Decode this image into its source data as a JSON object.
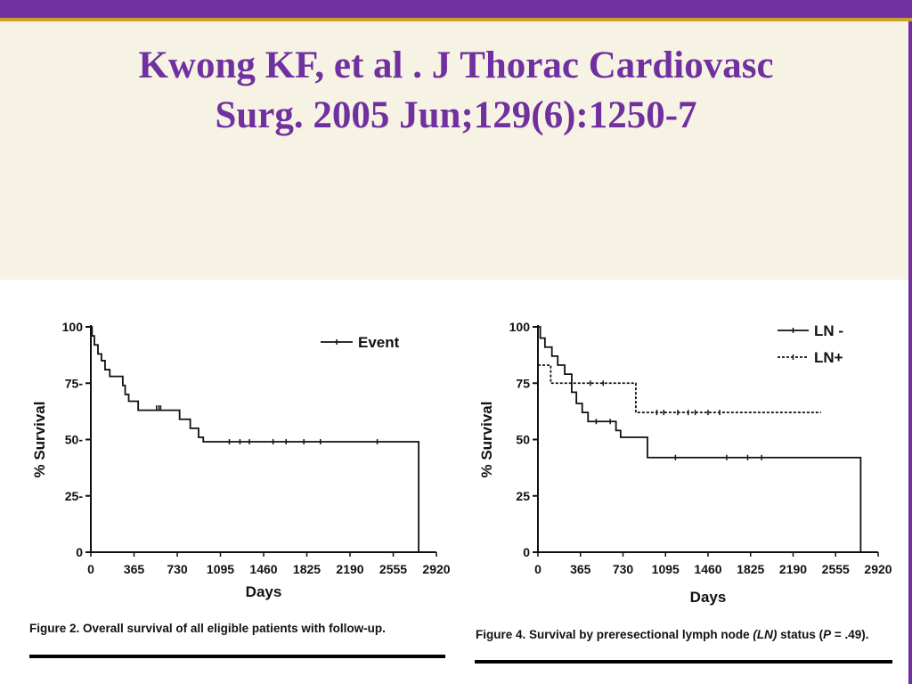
{
  "slide": {
    "title_line1": "Kwong KF, et al . J Thorac Cardiovasc",
    "title_line2": "Surg. 2005 Jun;129(6):1250-7",
    "colors": {
      "accent": "#7030a0",
      "gold": "#c9a227",
      "background": "#f6f3e4"
    }
  },
  "chart_data": [
    {
      "type": "line",
      "step": true,
      "xlabel": "Days",
      "ylabel": "% Survival",
      "x_ticks": [
        "0",
        "365",
        "730",
        "1095",
        "1460",
        "1825",
        "2190",
        "2555",
        "2920"
      ],
      "y_ticks": [
        "0",
        "25-",
        "50-",
        "75-",
        "100"
      ],
      "xlim": [
        0,
        2920
      ],
      "ylim": [
        0,
        100
      ],
      "caption": "Figure 2.  Overall survival of all eligible patients with follow-up.",
      "legend_position": "top-right",
      "series": [
        {
          "name": "Event",
          "style": "solid",
          "points": [
            [
              0,
              100
            ],
            [
              10,
              96
            ],
            [
              30,
              92
            ],
            [
              60,
              88
            ],
            [
              90,
              85
            ],
            [
              120,
              81
            ],
            [
              160,
              78
            ],
            [
              230,
              78
            ],
            [
              270,
              74
            ],
            [
              290,
              70
            ],
            [
              320,
              67
            ],
            [
              380,
              67
            ],
            [
              400,
              63
            ],
            [
              620,
              63
            ],
            [
              650,
              63
            ],
            [
              750,
              59
            ],
            [
              790,
              59
            ],
            [
              820,
              59
            ],
            [
              840,
              55
            ],
            [
              900,
              55
            ],
            [
              910,
              51
            ],
            [
              950,
              49
            ],
            [
              2770,
              49
            ],
            [
              2770,
              0
            ]
          ],
          "censored": [
            [
              555,
              64
            ],
            [
              575,
              64
            ],
            [
              590,
              64
            ],
            [
              1170,
              49
            ],
            [
              1260,
              49
            ],
            [
              1340,
              49
            ],
            [
              1540,
              49
            ],
            [
              1650,
              49
            ],
            [
              1800,
              49
            ],
            [
              1940,
              49
            ],
            [
              2420,
              49
            ]
          ]
        }
      ]
    },
    {
      "type": "line",
      "step": true,
      "xlabel": "Days",
      "ylabel": "% Survival",
      "x_ticks": [
        "0",
        "365",
        "730",
        "1095",
        "1460",
        "1825",
        "2190",
        "2555",
        "2920"
      ],
      "y_ticks": [
        "0",
        "25",
        "50",
        "75",
        "100"
      ],
      "xlim": [
        0,
        2920
      ],
      "ylim": [
        0,
        100
      ],
      "caption_prefix": "Figure 4.  Survival by preresectional lymph node ",
      "caption_italic1": "(LN)",
      "caption_mid": " status (",
      "caption_italic2": "P",
      "caption_suffix": " = .49).",
      "legend_position": "top-right",
      "series": [
        {
          "name": "LN -",
          "style": "solid",
          "points": [
            [
              0,
              100
            ],
            [
              20,
              95
            ],
            [
              60,
              91
            ],
            [
              120,
              87
            ],
            [
              170,
              83
            ],
            [
              230,
              79
            ],
            [
              290,
              71
            ],
            [
              330,
              66
            ],
            [
              380,
              62
            ],
            [
              430,
              58
            ],
            [
              640,
              58
            ],
            [
              670,
              54
            ],
            [
              700,
              54
            ],
            [
              710,
              51
            ],
            [
              900,
              51
            ],
            [
              940,
              42
            ],
            [
              2770,
              42
            ],
            [
              2770,
              0
            ]
          ],
          "censored": [
            [
              500,
              58
            ],
            [
              620,
              58
            ],
            [
              1180,
              42
            ],
            [
              1620,
              42
            ],
            [
              1800,
              42
            ],
            [
              1920,
              42
            ]
          ]
        },
        {
          "name": "LN+",
          "style": "dashed",
          "points": [
            [
              0,
              83
            ],
            [
              100,
              83
            ],
            [
              110,
              75
            ],
            [
              820,
              75
            ],
            [
              840,
              62
            ],
            [
              2430,
              62
            ]
          ],
          "censored": [
            [
              450,
              75
            ],
            [
              560,
              75
            ],
            [
              1020,
              62
            ],
            [
              1080,
              62
            ],
            [
              1200,
              62
            ],
            [
              1290,
              62
            ],
            [
              1350,
              62
            ],
            [
              1460,
              62
            ],
            [
              1560,
              62
            ]
          ]
        }
      ]
    }
  ]
}
